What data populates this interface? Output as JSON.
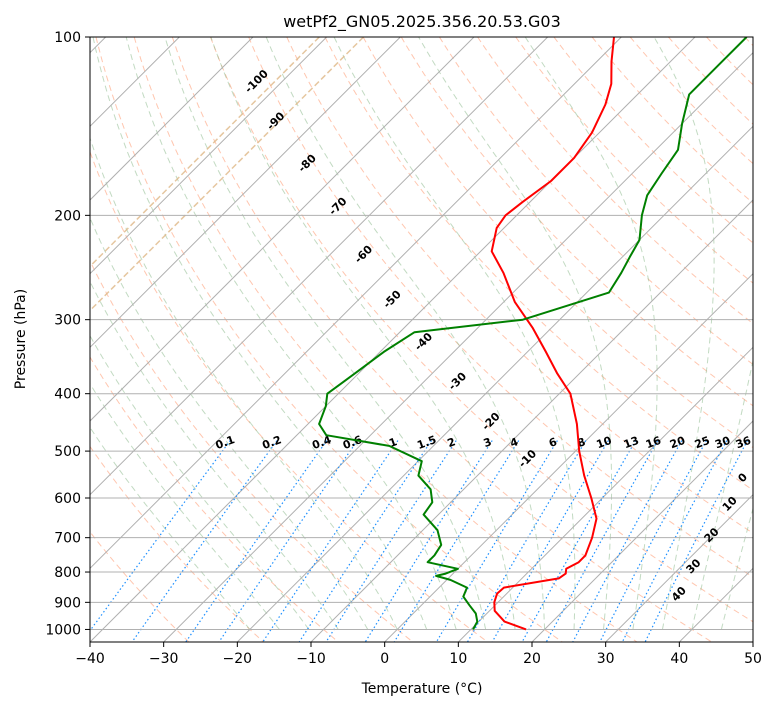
{
  "chart_data": {
    "type": "line",
    "title": "wetPf2_GN05.2025.356.20.53.G03",
    "xlabel": "Temperature (°C)",
    "ylabel": "Pressure (hPa)",
    "xlim": [
      -40,
      50
    ],
    "ylim": [
      1050,
      100
    ],
    "y_scale": "log",
    "x_ticks": [
      -40,
      -30,
      -20,
      -10,
      0,
      10,
      20,
      30,
      40,
      50
    ],
    "x_tick_labels": [
      "−40",
      "−30",
      "−20",
      "−10",
      "0",
      "10",
      "20",
      "30",
      "40",
      "50"
    ],
    "y_ticks": [
      100,
      200,
      300,
      400,
      500,
      600,
      700,
      800,
      900,
      1000
    ],
    "y_tick_labels": [
      "100",
      "200",
      "300",
      "400",
      "500",
      "600",
      "700",
      "800",
      "900",
      "1000"
    ],
    "grid": true,
    "series": [
      {
        "color": "#ff0000",
        "points": [
          {
            "p": 1000,
            "t": 17.5
          },
          {
            "p": 970,
            "t": 13.5
          },
          {
            "p": 930,
            "t": 10.7
          },
          {
            "p": 900,
            "t": 9.5
          },
          {
            "p": 870,
            "t": 8.7
          },
          {
            "p": 850,
            "t": 8.8
          },
          {
            "p": 820,
            "t": 15.0
          },
          {
            "p": 805,
            "t": 15.3
          },
          {
            "p": 790,
            "t": 14.7
          },
          {
            "p": 770,
            "t": 15.5
          },
          {
            "p": 750,
            "t": 15.5
          },
          {
            "p": 700,
            "t": 14.0
          },
          {
            "p": 650,
            "t": 12.0
          },
          {
            "p": 600,
            "t": 8.5
          },
          {
            "p": 550,
            "t": 4.5
          },
          {
            "p": 500,
            "t": 0.5
          },
          {
            "p": 450,
            "t": -3.5
          },
          {
            "p": 400,
            "t": -8.5
          },
          {
            "p": 370,
            "t": -13.0
          },
          {
            "p": 340,
            "t": -17.5
          },
          {
            "p": 310,
            "t": -22.5
          },
          {
            "p": 280,
            "t": -28.5
          },
          {
            "p": 250,
            "t": -34.0
          },
          {
            "p": 230,
            "t": -38.5
          },
          {
            "p": 210,
            "t": -41.0
          },
          {
            "p": 200,
            "t": -41.5
          },
          {
            "p": 190,
            "t": -41.0
          },
          {
            "p": 175,
            "t": -40.0
          },
          {
            "p": 160,
            "t": -40.0
          },
          {
            "p": 145,
            "t": -41.0
          },
          {
            "p": 130,
            "t": -43.0
          },
          {
            "p": 120,
            "t": -45.0
          },
          {
            "p": 110,
            "t": -48.0
          },
          {
            "p": 100,
            "t": -51.0
          }
        ]
      },
      {
        "color": "#008000",
        "points": [
          {
            "p": 1000,
            "t": 10.3
          },
          {
            "p": 970,
            "t": 9.8
          },
          {
            "p": 940,
            "t": 8.5
          },
          {
            "p": 910,
            "t": 6.5
          },
          {
            "p": 880,
            "t": 4.5
          },
          {
            "p": 850,
            "t": 3.8
          },
          {
            "p": 825,
            "t": 0.5
          },
          {
            "p": 812,
            "t": -2.0
          },
          {
            "p": 805,
            "t": -1.0
          },
          {
            "p": 790,
            "t": 0.0
          },
          {
            "p": 770,
            "t": -5.0
          },
          {
            "p": 750,
            "t": -5.0
          },
          {
            "p": 720,
            "t": -5.5
          },
          {
            "p": 680,
            "t": -8.0
          },
          {
            "p": 640,
            "t": -12.0
          },
          {
            "p": 610,
            "t": -12.5
          },
          {
            "p": 580,
            "t": -14.5
          },
          {
            "p": 550,
            "t": -18.0
          },
          {
            "p": 520,
            "t": -19.5
          },
          {
            "p": 490,
            "t": -26.0
          },
          {
            "p": 470,
            "t": -36.0
          },
          {
            "p": 450,
            "t": -38.5
          },
          {
            "p": 420,
            "t": -40.0
          },
          {
            "p": 400,
            "t": -41.5
          },
          {
            "p": 370,
            "t": -40.5
          },
          {
            "p": 340,
            "t": -39.5
          },
          {
            "p": 315,
            "t": -38.0
          },
          {
            "p": 300,
            "t": -25.0
          },
          {
            "p": 270,
            "t": -17.0
          },
          {
            "p": 250,
            "t": -18.0
          },
          {
            "p": 235,
            "t": -19.0
          },
          {
            "p": 220,
            "t": -20.0
          },
          {
            "p": 200,
            "t": -23.0
          },
          {
            "p": 185,
            "t": -25.0
          },
          {
            "p": 170,
            "t": -26.0
          },
          {
            "p": 155,
            "t": -27.0
          },
          {
            "p": 140,
            "t": -30.0
          },
          {
            "p": 125,
            "t": -33.0
          },
          {
            "p": 112,
            "t": -33.0
          },
          {
            "p": 100,
            "t": -33.0
          }
        ]
      }
    ],
    "mixing_ratio_lines": {
      "values": [
        0.1,
        0.2,
        0.4,
        0.6,
        1,
        1.5,
        2,
        3,
        4,
        6,
        8,
        10,
        13,
        16,
        20,
        25,
        30,
        36
      ],
      "labels": [
        "0.1",
        "0.2",
        "0.4",
        "0.6",
        "1",
        "1.5",
        "2",
        "3",
        "4",
        "6",
        "8",
        "10",
        "13",
        "16",
        "20",
        "25",
        "30",
        "36"
      ],
      "color": "#1e90ff"
    },
    "moist_adiabat_labels": {
      "values": [
        -100,
        -90,
        -80,
        -70,
        -60,
        -50,
        -40,
        -30,
        -20,
        -10
      ],
      "labels": [
        "-100",
        "-90",
        "-80",
        "-70",
        "-60",
        "-50",
        "-40",
        "-30",
        "-20",
        "-10"
      ],
      "color": "#1f77b4"
    },
    "wet_bulb_labels": {
      "values": [
        0,
        10,
        20,
        30,
        40
      ],
      "labels": [
        "0",
        "10",
        "20",
        "30",
        "40"
      ],
      "colors": [
        "#808080",
        "#d62728",
        "#d62728",
        "#d62728",
        "#d62728"
      ]
    },
    "line_colors": {
      "isotherm": "#b0b0b0",
      "dry_adiabat": "#ffa07a",
      "moist_adiabat": "#8fbc8f",
      "freezing_curve": "#deb887"
    }
  }
}
